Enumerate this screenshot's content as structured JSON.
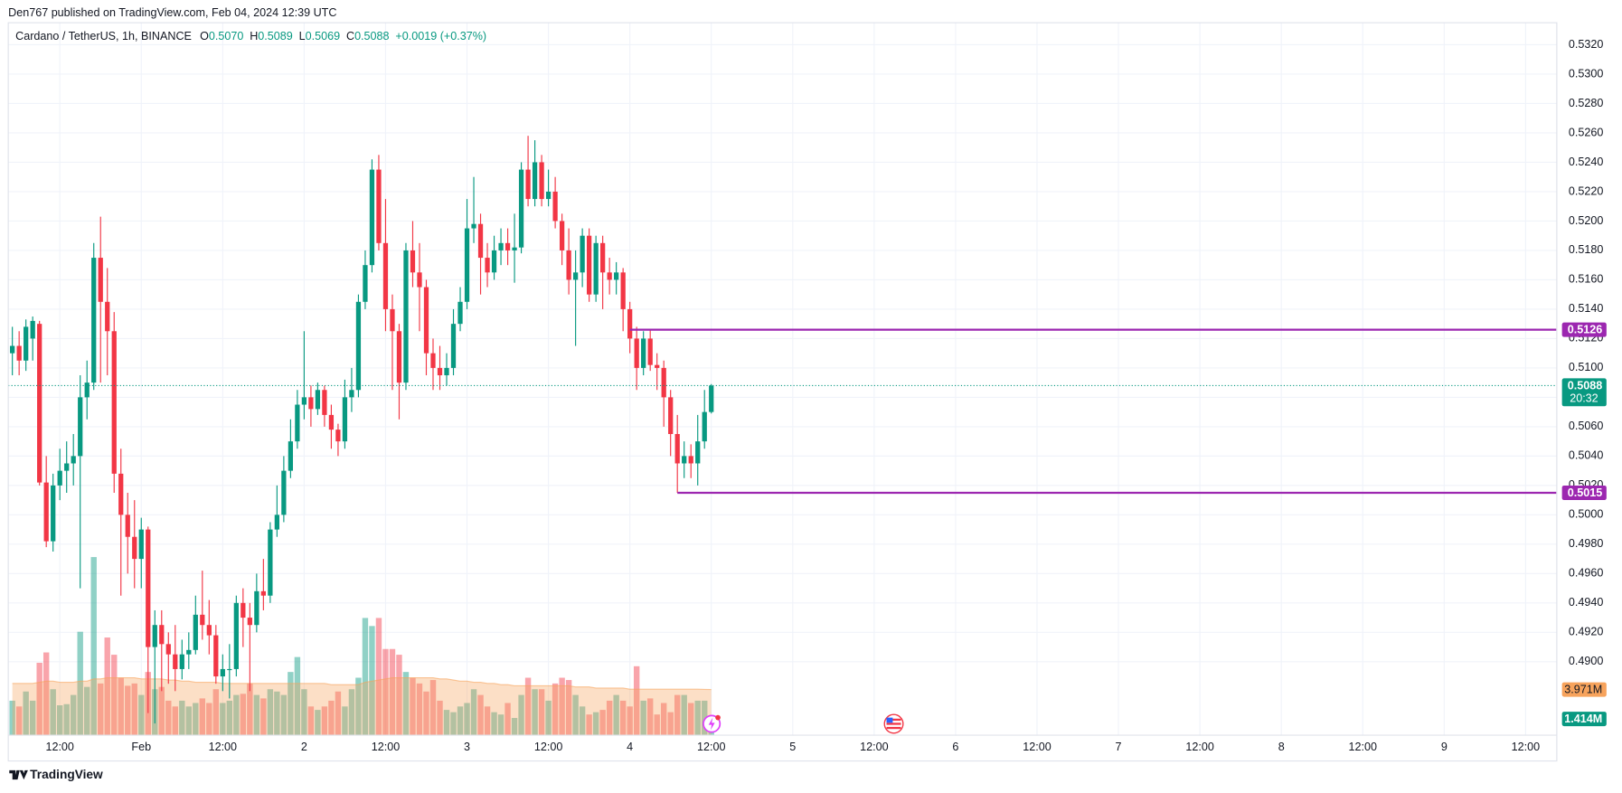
{
  "header": "Den767 published on TradingView.com, Feb 04, 2024 12:39 UTC",
  "footer": "TradingView",
  "chart_data": {
    "type": "candlestick",
    "symbol": "Cardano / TetherUS, 1h, BINANCE",
    "legend": [
      {
        "key": "O",
        "value": "0.5070"
      },
      {
        "key": "H",
        "value": "0.5089"
      },
      {
        "key": "L",
        "value": "0.5069"
      },
      {
        "key": "C",
        "value": "0.5088"
      }
    ],
    "change": "+0.0019 (+0.37%)",
    "up_color": "#089981",
    "down_color": "#f23645",
    "xlim": [
      -0.6,
      227.6
    ],
    "xticks": [
      {
        "value": 7,
        "label": "12:00"
      },
      {
        "value": 19,
        "label": "Feb"
      },
      {
        "value": 31,
        "label": "12:00"
      },
      {
        "value": 43,
        "label": "2"
      },
      {
        "value": 55,
        "label": "12:00"
      },
      {
        "value": 67,
        "label": "3"
      },
      {
        "value": 79,
        "label": "12:00"
      },
      {
        "value": 91,
        "label": "4"
      },
      {
        "value": 103,
        "label": "12:00"
      },
      {
        "value": 115,
        "label": "5"
      },
      {
        "value": 127,
        "label": "12:00"
      },
      {
        "value": 139,
        "label": "6"
      },
      {
        "value": 151,
        "label": "12:00"
      },
      {
        "value": 163,
        "label": "7"
      },
      {
        "value": 175,
        "label": "12:00"
      },
      {
        "value": 187,
        "label": "8"
      },
      {
        "value": 199,
        "label": "12:00"
      },
      {
        "value": 211,
        "label": "9"
      },
      {
        "value": 223,
        "label": "12:00"
      }
    ],
    "ylim": [
      0.485,
      0.5335
    ],
    "yticks": [
      {
        "value": 0.49,
        "label": "0.4900"
      },
      {
        "value": 0.492,
        "label": "0.4920"
      },
      {
        "value": 0.494,
        "label": "0.4940"
      },
      {
        "value": 0.496,
        "label": "0.4960"
      },
      {
        "value": 0.498,
        "label": "0.4980"
      },
      {
        "value": 0.5,
        "label": "0.5000"
      },
      {
        "value": 0.502,
        "label": "0.5020"
      },
      {
        "value": 0.504,
        "label": "0.5040"
      },
      {
        "value": 0.506,
        "label": "0.5060"
      },
      {
        "value": 0.508,
        "label": "0.5080"
      },
      {
        "value": 0.51,
        "label": "0.5100"
      },
      {
        "value": 0.512,
        "label": "0.5120"
      },
      {
        "value": 0.514,
        "label": "0.5140"
      },
      {
        "value": 0.516,
        "label": "0.5160"
      },
      {
        "value": 0.518,
        "label": "0.5180"
      },
      {
        "value": 0.52,
        "label": "0.5200"
      },
      {
        "value": 0.522,
        "label": "0.5220"
      },
      {
        "value": 0.524,
        "label": "0.5240"
      },
      {
        "value": 0.526,
        "label": "0.5260"
      },
      {
        "value": 0.528,
        "label": "0.5280"
      },
      {
        "value": 0.53,
        "label": "0.5300"
      },
      {
        "value": 0.532,
        "label": "0.5320"
      }
    ],
    "grid": true,
    "open": [
      0.511,
      0.5115,
      0.5105,
      0.512,
      0.513,
      0.5022,
      0.4982,
      0.502,
      0.503,
      0.5035,
      0.504,
      0.508,
      0.509,
      0.5175,
      0.5145,
      0.5125,
      0.5028,
      0.5,
      0.4985,
      0.497,
      0.499,
      0.491,
      0.4925,
      0.4912,
      0.4905,
      0.4895,
      0.4905,
      0.4908,
      0.4932,
      0.4925,
      0.4918,
      0.489,
      0.4895,
      0.4895,
      0.494,
      0.493,
      0.4925,
      0.4948,
      0.4945,
      0.499,
      0.5,
      0.503,
      0.505,
      0.5075,
      0.508,
      0.5072,
      0.5085,
      0.5068,
      0.5058,
      0.505,
      0.508,
      0.5085,
      0.5145,
      0.517,
      0.5235,
      0.5185,
      0.514,
      0.5125,
      0.509,
      0.518,
      0.5165,
      0.5155,
      0.511,
      0.51,
      0.5095,
      0.51,
      0.513,
      0.5145,
      0.5195,
      0.5198,
      0.5175,
      0.5165,
      0.518,
      0.5185,
      0.518,
      0.5182,
      0.5235,
      0.5215,
      0.524,
      0.5215,
      0.522,
      0.52,
      0.518,
      0.516,
      0.5165,
      0.519,
      0.515,
      0.5185,
      0.5165,
      0.516,
      0.5165,
      0.514,
      0.512,
      0.51,
      0.512,
      0.5102,
      0.51,
      0.508,
      0.5055,
      0.5035,
      0.504,
      0.5035,
      0.505,
      0.507
    ],
    "high": [
      0.5128,
      0.5125,
      0.5133,
      0.5135,
      0.5132,
      0.504,
      0.5028,
      0.5045,
      0.505,
      0.5055,
      0.5095,
      0.5105,
      0.5185,
      0.5203,
      0.5168,
      0.5138,
      0.5045,
      0.5015,
      0.501,
      0.4998,
      0.4992,
      0.4935,
      0.4935,
      0.492,
      0.4925,
      0.4915,
      0.492,
      0.4945,
      0.4962,
      0.4942,
      0.4925,
      0.4905,
      0.4912,
      0.4945,
      0.495,
      0.494,
      0.496,
      0.497,
      0.4995,
      0.502,
      0.504,
      0.5065,
      0.5085,
      0.5125,
      0.5088,
      0.509,
      0.5088,
      0.5075,
      0.5062,
      0.5092,
      0.51,
      0.515,
      0.518,
      0.5242,
      0.5245,
      0.5215,
      0.515,
      0.513,
      0.5185,
      0.52,
      0.5185,
      0.516,
      0.512,
      0.5115,
      0.511,
      0.514,
      0.5155,
      0.5215,
      0.523,
      0.5205,
      0.5185,
      0.519,
      0.5195,
      0.5195,
      0.5205,
      0.524,
      0.5258,
      0.5255,
      0.5245,
      0.5235,
      0.523,
      0.5205,
      0.5195,
      0.518,
      0.5195,
      0.5195,
      0.519,
      0.519,
      0.5175,
      0.5172,
      0.5168,
      0.5145,
      0.5128,
      0.5125,
      0.5126,
      0.511,
      0.5105,
      0.5085,
      0.5068,
      0.505,
      0.5048,
      0.5068,
      0.5085,
      0.5089
    ],
    "low": [
      0.5095,
      0.5095,
      0.5098,
      0.5105,
      0.502,
      0.4978,
      0.4975,
      0.501,
      0.5015,
      0.502,
      0.495,
      0.5065,
      0.5085,
      0.509,
      0.5095,
      0.5015,
      0.4945,
      0.496,
      0.495,
      0.495,
      0.4865,
      0.4858,
      0.488,
      0.4885,
      0.488,
      0.4888,
      0.4895,
      0.4905,
      0.4915,
      0.4905,
      0.4885,
      0.488,
      0.4875,
      0.489,
      0.491,
      0.488,
      0.492,
      0.4935,
      0.494,
      0.4985,
      0.4995,
      0.5025,
      0.5045,
      0.5065,
      0.506,
      0.5068,
      0.506,
      0.5045,
      0.504,
      0.5045,
      0.507,
      0.508,
      0.514,
      0.5165,
      0.518,
      0.5125,
      0.5085,
      0.5065,
      0.5085,
      0.5155,
      0.5125,
      0.5095,
      0.5085,
      0.5085,
      0.5088,
      0.5095,
      0.5125,
      0.514,
      0.5185,
      0.515,
      0.5155,
      0.516,
      0.517,
      0.517,
      0.5158,
      0.5178,
      0.521,
      0.521,
      0.521,
      0.521,
      0.5195,
      0.517,
      0.515,
      0.5115,
      0.5155,
      0.5145,
      0.5145,
      0.514,
      0.515,
      0.515,
      0.5125,
      0.511,
      0.5085,
      0.5095,
      0.5098,
      0.5085,
      0.506,
      0.504,
      0.5015,
      0.5025,
      0.5025,
      0.502,
      0.5045,
      0.5069
    ],
    "close": [
      0.5115,
      0.5105,
      0.5128,
      0.5132,
      0.5022,
      0.4982,
      0.502,
      0.503,
      0.5035,
      0.504,
      0.508,
      0.509,
      0.5175,
      0.5145,
      0.5125,
      0.5028,
      0.5,
      0.4985,
      0.497,
      0.499,
      0.491,
      0.4925,
      0.4912,
      0.4905,
      0.4895,
      0.4905,
      0.4908,
      0.4932,
      0.4925,
      0.4918,
      0.489,
      0.4895,
      0.4895,
      0.494,
      0.493,
      0.4925,
      0.4948,
      0.4945,
      0.499,
      0.5,
      0.503,
      0.505,
      0.5075,
      0.508,
      0.5072,
      0.5085,
      0.5068,
      0.5058,
      0.505,
      0.508,
      0.5085,
      0.5145,
      0.517,
      0.5235,
      0.5185,
      0.514,
      0.5125,
      0.509,
      0.518,
      0.5165,
      0.5155,
      0.511,
      0.51,
      0.5095,
      0.51,
      0.513,
      0.5145,
      0.5195,
      0.5198,
      0.5175,
      0.5165,
      0.518,
      0.5185,
      0.518,
      0.5182,
      0.5235,
      0.5215,
      0.524,
      0.5215,
      0.522,
      0.52,
      0.518,
      0.516,
      0.5165,
      0.519,
      0.515,
      0.5185,
      0.5165,
      0.516,
      0.5165,
      0.514,
      0.512,
      0.51,
      0.512,
      0.5102,
      0.51,
      0.508,
      0.5055,
      0.5035,
      0.504,
      0.5035,
      0.505,
      0.507,
      0.5088
    ],
    "volume_ylim": [
      0,
      62
    ],
    "volume": [
      3.0,
      2.5,
      3.8,
      3.0,
      6.3,
      7.2,
      4.0,
      2.6,
      2.7,
      3.5,
      9.0,
      4.2,
      15.5,
      4.5,
      8.5,
      7.0,
      5.0,
      4.3,
      4.5,
      3.5,
      5.5,
      4.0,
      4.2,
      3.0,
      2.5,
      3.0,
      2.5,
      2.8,
      3.2,
      2.8,
      4.0,
      2.8,
      3.0,
      3.5,
      3.6,
      4.5,
      3.5,
      3.2,
      4.0,
      3.8,
      3.5,
      5.5,
      6.8,
      4.0,
      2.5,
      2.2,
      2.5,
      3.0,
      3.8,
      2.5,
      4.0,
      5.0,
      10.2,
      9.5,
      10.2,
      7.5,
      7.5,
      7.0,
      5.5,
      5.0,
      4.5,
      3.8,
      4.8,
      3.0,
      2.2,
      2.0,
      2.5,
      2.8,
      4.0,
      3.5,
      2.5,
      2.0,
      1.8,
      2.8,
      1.5,
      3.5,
      5.0,
      4.0,
      4.0,
      3.0,
      4.5,
      5.0,
      4.8,
      3.5,
      2.5,
      1.8,
      2.0,
      2.2,
      3.0,
      3.5,
      3.0,
      2.5,
      6.0,
      3.0,
      3.2,
      1.8,
      2.8,
      2.0,
      3.5,
      3.5,
      2.8,
      3.0,
      3.0,
      1.414
    ],
    "volume_label": "1.414M",
    "volume_ma": [
      4.5,
      4.5,
      4.5,
      4.5,
      4.6,
      4.7,
      4.7,
      4.6,
      4.6,
      4.6,
      4.7,
      4.7,
      4.9,
      4.9,
      5.0,
      5.0,
      5.0,
      5.0,
      5.0,
      4.9,
      4.9,
      4.9,
      4.9,
      4.8,
      4.8,
      4.7,
      4.7,
      4.6,
      4.6,
      4.6,
      4.6,
      4.5,
      4.5,
      4.5,
      4.5,
      4.5,
      4.5,
      4.5,
      4.5,
      4.5,
      4.5,
      4.5,
      4.5,
      4.5,
      4.5,
      4.5,
      4.5,
      4.4,
      4.4,
      4.4,
      4.4,
      4.4,
      4.6,
      4.7,
      4.8,
      4.9,
      5.0,
      5.0,
      5.0,
      5.0,
      5.0,
      5.0,
      5.0,
      4.9,
      4.9,
      4.8,
      4.7,
      4.7,
      4.6,
      4.6,
      4.5,
      4.5,
      4.4,
      4.4,
      4.3,
      4.3,
      4.3,
      4.3,
      4.3,
      4.3,
      4.3,
      4.3,
      4.3,
      4.2,
      4.2,
      4.2,
      4.1,
      4.1,
      4.1,
      4.1,
      4.1,
      4.0,
      4.0,
      4.0,
      4.0,
      4.0,
      4.0,
      4.0,
      4.0,
      4.0,
      4.0,
      4.0,
      3.98,
      3.971
    ],
    "volume_ma_label": "3.971M",
    "volume_ma_color": "#f7a35c",
    "last_price": {
      "value": 0.5088,
      "label": "0.5088",
      "countdown": "20:32"
    },
    "levels": [
      {
        "value": 0.5126,
        "label": "0.5126",
        "start": 91,
        "color": "#9c27b0"
      },
      {
        "value": 0.5015,
        "label": "0.5015",
        "start": 98,
        "color": "#9c27b0"
      }
    ]
  }
}
